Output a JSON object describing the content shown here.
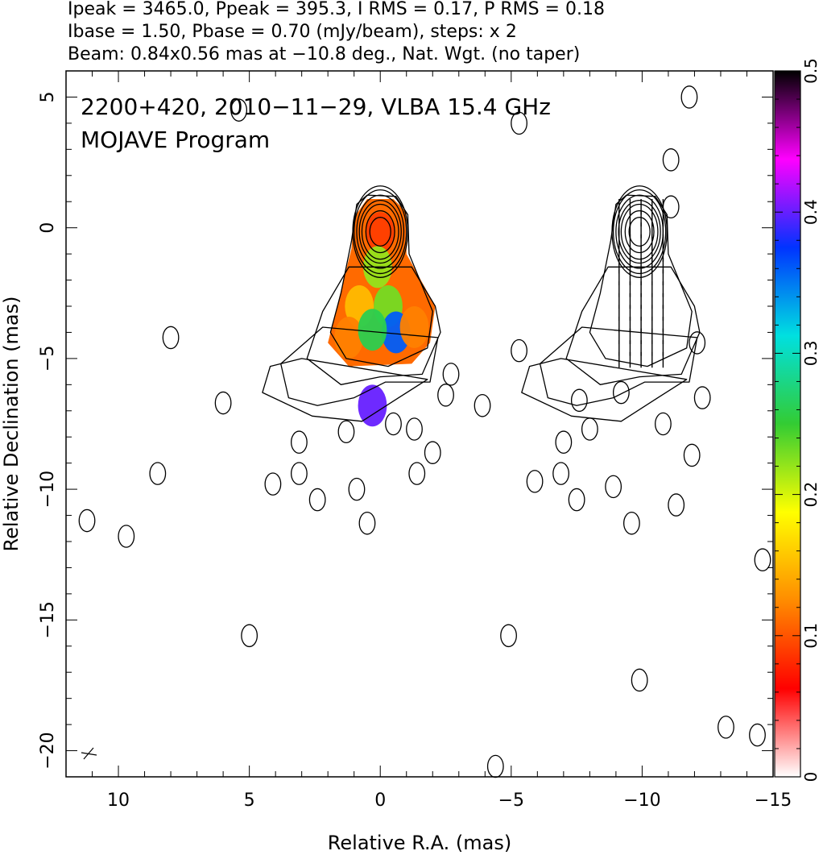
{
  "header_lines": [
    "Ipeak = 3465.0, Ppeak = 395.3, I RMS = 0.17, P RMS = 0.18",
    "Ibase = 1.50, Pbase = 0.70 (mJy/beam), steps: x 2",
    "Beam: 0.84x0.56 mas at −10.8 deg., Nat. Wgt. (no taper)"
  ],
  "annotations": [
    "2200+420, 2010−11−29, VLBA 15.4 GHz",
    "MOJAVE Program"
  ],
  "chart_data": {
    "type": "heatmap",
    "xlabel": "Relative R.A. (mas)",
    "ylabel": "Relative Declination (mas)",
    "xlim": [
      12,
      -15
    ],
    "ylim": [
      -21,
      6
    ],
    "x_ticks": [
      10,
      5,
      0,
      -5,
      -10,
      -15
    ],
    "x_tick_labels": [
      "10",
      "5",
      "0",
      "−5",
      "−10",
      "−15"
    ],
    "y_ticks": [
      5,
      0,
      -5,
      -10,
      -15,
      -20
    ],
    "y_tick_labels": [
      "5",
      "0",
      "−5",
      "−10",
      "−15",
      "−20"
    ],
    "colorbar": {
      "range": [
        0,
        0.5
      ],
      "ticks": [
        0,
        0.1,
        0.2,
        0.3,
        0.4,
        0.5
      ],
      "tick_labels": [
        "0",
        "0.1",
        "0.2",
        "0.3",
        "0.4",
        "0.5"
      ],
      "colors": [
        "#ffffff",
        "#ff0000",
        "#ff8c00",
        "#ffff00",
        "#33cc33",
        "#00e0e0",
        "#0033ff",
        "#ff00ff",
        "#000000"
      ]
    },
    "left_panel": {
      "core_center": [
        0,
        0
      ],
      "contour_rings": [
        {
          "rx": 0.4,
          "ry": 0.55
        },
        {
          "rx": 0.55,
          "ry": 0.8
        },
        {
          "rx": 0.7,
          "ry": 1.05
        },
        {
          "rx": 0.8,
          "ry": 1.2
        },
        {
          "rx": 0.9,
          "ry": 1.4
        },
        {
          "rx": 1.0,
          "ry": 1.6
        },
        {
          "rx": 1.05,
          "ry": 1.75
        }
      ],
      "jet_contours": [
        [
          [
            0.9,
            0.9
          ],
          [
            1.1,
            -0.5
          ],
          [
            1.5,
            -2.5
          ],
          [
            1.9,
            -4.0
          ],
          [
            1.3,
            -5.0
          ],
          [
            -0.3,
            -5.3
          ],
          [
            -1.8,
            -4.6
          ],
          [
            -2.0,
            -3.2
          ],
          [
            -1.1,
            -1.0
          ],
          [
            -1.05,
            0.5
          ],
          [
            -0.6,
            1.2
          ],
          [
            0.5,
            1.25
          ]
        ],
        [
          [
            1.2,
            -1.5
          ],
          [
            2.2,
            -3.2
          ],
          [
            2.8,
            -5.0
          ],
          [
            1.5,
            -6.0
          ],
          [
            0.0,
            -5.7
          ],
          [
            -1.6,
            -5.6
          ],
          [
            -2.3,
            -4.0
          ],
          [
            -2.1,
            -3.0
          ],
          [
            -1.2,
            -1.5
          ]
        ],
        [
          [
            2.2,
            -3.8
          ],
          [
            3.8,
            -5.2
          ],
          [
            3.5,
            -6.5
          ],
          [
            2.4,
            -6.8
          ],
          [
            1.0,
            -6.5
          ],
          [
            -0.2,
            -5.9
          ],
          [
            -1.9,
            -5.9
          ],
          [
            -2.2,
            -4.2
          ]
        ],
        [
          [
            3.0,
            -5.0
          ],
          [
            4.2,
            -5.3
          ],
          [
            4.5,
            -6.3
          ],
          [
            2.6,
            -7.2
          ],
          [
            0.7,
            -7.4
          ],
          [
            -0.7,
            -6.5
          ],
          [
            -1.8,
            -5.8
          ]
        ]
      ],
      "colormap_values": [
        {
          "x": 0.0,
          "y": -0.2,
          "v": 0.09
        },
        {
          "x": 0.1,
          "y": -1.5,
          "v": 0.22
        },
        {
          "x": -0.3,
          "y": -3.0,
          "v": 0.23
        },
        {
          "x": 0.8,
          "y": -3.0,
          "v": 0.15
        },
        {
          "x": -0.6,
          "y": -4.0,
          "v": 0.36
        },
        {
          "x": 1.2,
          "y": -4.2,
          "v": 0.12
        },
        {
          "x": 0.3,
          "y": -3.9,
          "v": 0.26
        },
        {
          "x": -1.3,
          "y": -3.8,
          "v": 0.12
        },
        {
          "x": 0.3,
          "y": -6.8,
          "v": 0.4
        }
      ],
      "isolated_components": [
        [
          8.0,
          -4.2
        ],
        [
          6.0,
          -6.7
        ],
        [
          3.1,
          -8.2
        ],
        [
          3.1,
          -9.4
        ],
        [
          4.1,
          -9.8
        ],
        [
          8.5,
          -9.4
        ],
        [
          2.4,
          -10.4
        ],
        [
          1.3,
          -7.8
        ],
        [
          0.9,
          -10.0
        ],
        [
          0.5,
          -11.3
        ],
        [
          -0.5,
          -7.5
        ],
        [
          -1.3,
          -7.7
        ],
        [
          -1.4,
          -9.4
        ],
        [
          -2.0,
          -8.6
        ],
        [
          -2.5,
          -6.4
        ],
        [
          -3.9,
          -6.8
        ],
        [
          -2.7,
          -5.6
        ],
        [
          -5.3,
          -4.7
        ],
        [
          -4.9,
          -15.6
        ],
        [
          -4.4,
          -20.6
        ],
        [
          5.0,
          -15.6
        ],
        [
          11.2,
          -11.2
        ],
        [
          9.7,
          -11.8
        ],
        [
          5.4,
          4.5
        ]
      ]
    },
    "right_panel": {
      "core_center": [
        -9.9,
        0
      ],
      "isolated_components": [
        [
          -7.0,
          -8.2
        ],
        [
          -6.9,
          -9.4
        ],
        [
          -5.9,
          -9.7
        ],
        [
          -7.5,
          -10.4
        ],
        [
          -8.0,
          -7.7
        ],
        [
          -8.9,
          -9.9
        ],
        [
          -9.6,
          -11.3
        ],
        [
          -10.8,
          -7.5
        ],
        [
          -11.3,
          -10.6
        ],
        [
          -11.9,
          -8.7
        ],
        [
          -12.3,
          -6.5
        ],
        [
          -12.1,
          -4.4
        ],
        [
          -11.1,
          2.6
        ],
        [
          -11.1,
          0.8
        ],
        [
          -11.8,
          5.0
        ],
        [
          -9.9,
          -17.3
        ],
        [
          -14.6,
          -12.7
        ],
        [
          -13.2,
          -19.1
        ],
        [
          -14.4,
          -19.4
        ],
        [
          -5.3,
          4.0
        ],
        [
          -7.6,
          -6.6
        ],
        [
          -9.2,
          -6.3
        ]
      ]
    }
  }
}
